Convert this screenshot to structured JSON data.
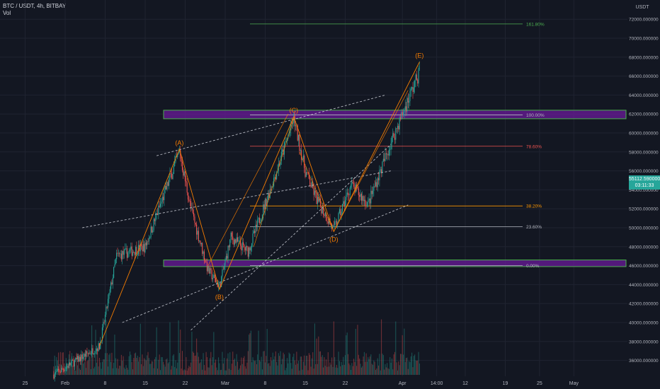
{
  "header": {
    "symbol": "BTC / USDT, 4h, BITBAY",
    "volume_label": "Vol"
  },
  "price_axis": {
    "currency": "USDT",
    "current_price": "55112.590000",
    "countdown": "03:11:33"
  },
  "colors": {
    "background": "#131722",
    "grid": "#1f2330",
    "up": "#26a69a",
    "down": "#ef5350",
    "wave": "#f57c00",
    "zone_fill": "#6a1b9a",
    "zone_border": "#4caf50",
    "dashed": "#d1d4dc"
  },
  "chart_data": {
    "type": "candlestick",
    "xlabel": "",
    "ylabel": "",
    "x_ticks": [
      "25",
      "Feb",
      "8",
      "15",
      "22",
      "Mar",
      "8",
      "15",
      "22",
      "Apr",
      "14:00",
      "12",
      "19",
      "25",
      "May"
    ],
    "y_ticks": [
      36000,
      38000,
      40000,
      42000,
      44000,
      46000,
      48000,
      50000,
      52000,
      54000,
      56000,
      58000,
      60000,
      62000,
      64000,
      66000,
      68000,
      70000,
      72000
    ],
    "y_tick_format": "000000",
    "ylim": [
      35000,
      73500
    ],
    "price_path": [
      {
        "date": "2021-01-30",
        "price": 34500
      },
      {
        "date": "2021-02-07",
        "price": 37500
      },
      {
        "date": "2021-02-10",
        "price": 47000
      },
      {
        "date": "2021-02-15",
        "price": 48000
      },
      {
        "date": "2021-02-21",
        "price": 58000
      },
      {
        "date": "2021-02-23",
        "price": 52000
      },
      {
        "date": "2021-02-26",
        "price": 45500
      },
      {
        "date": "2021-02-28",
        "price": 43800
      },
      {
        "date": "2021-03-02",
        "price": 49000
      },
      {
        "date": "2021-03-05",
        "price": 47500
      },
      {
        "date": "2021-03-10",
        "price": 56000
      },
      {
        "date": "2021-03-13",
        "price": 61500
      },
      {
        "date": "2021-03-15",
        "price": 56000
      },
      {
        "date": "2021-03-17",
        "price": 53000
      },
      {
        "date": "2021-03-20",
        "price": 49800
      },
      {
        "date": "2021-03-23",
        "price": 54500
      },
      {
        "date": "2021-03-26",
        "price": 52500
      },
      {
        "date": "2021-03-30",
        "price": 59000
      },
      {
        "date": "2021-04-02",
        "price": 63500
      },
      {
        "date": "2021-04-04",
        "price": 66500
      }
    ],
    "wave_labels": [
      {
        "label": "(A)",
        "date": "2021-02-21",
        "price": 58300,
        "pos": "above"
      },
      {
        "label": "(B)",
        "date": "2021-02-28",
        "price": 43500,
        "pos": "below"
      },
      {
        "label": "(C)",
        "date": "2021-03-13",
        "price": 61700,
        "pos": "above"
      },
      {
        "label": "(D)",
        "date": "2021-03-20",
        "price": 49600,
        "pos": "below"
      },
      {
        "label": "(E)",
        "date": "2021-04-04",
        "price": 67500,
        "pos": "above"
      }
    ],
    "fib_levels": [
      {
        "label": "161.80%",
        "price": 71500,
        "color": "#4caf50"
      },
      {
        "label": "100.00%",
        "price": 61900,
        "color": "#b2b5be"
      },
      {
        "label": "78.60%",
        "price": 58600,
        "color": "#ef5350"
      },
      {
        "label": "38.20%",
        "price": 52300,
        "color": "#ff9800"
      },
      {
        "label": "23.60%",
        "price": 50100,
        "color": "#b2b5be"
      },
      {
        "label": "0.00%",
        "price": 46000,
        "color": "#b2b5be"
      }
    ],
    "zones": [
      {
        "price_top": 62400,
        "price_bottom": 61500
      },
      {
        "price_top": 46600,
        "price_bottom": 45900
      }
    ],
    "grid": true,
    "legend": "none"
  }
}
